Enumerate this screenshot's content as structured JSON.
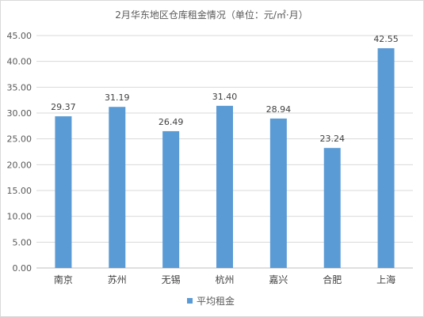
{
  "chart_data": {
    "type": "bar",
    "title": "2月华东地区仓库租金情况（单位：元/㎡·月）",
    "categories": [
      "南京",
      "苏州",
      "无锡",
      "杭州",
      "嘉兴",
      "合肥",
      "上海"
    ],
    "series": [
      {
        "name": "平均租金",
        "values": [
          29.37,
          31.19,
          26.49,
          31.4,
          28.94,
          23.24,
          42.55
        ],
        "color": "#5b9bd5"
      }
    ],
    "ylim": [
      0,
      45
    ],
    "yticks": [
      "0.00",
      "5.00",
      "10.00",
      "15.00",
      "20.00",
      "25.00",
      "30.00",
      "35.00",
      "40.00",
      "45.00"
    ],
    "data_labels": [
      "29.37",
      "31.19",
      "26.49",
      "31.40",
      "28.94",
      "23.24",
      "42.55"
    ],
    "grid": true,
    "legend_position": "bottom",
    "xlabel": "",
    "ylabel": ""
  }
}
